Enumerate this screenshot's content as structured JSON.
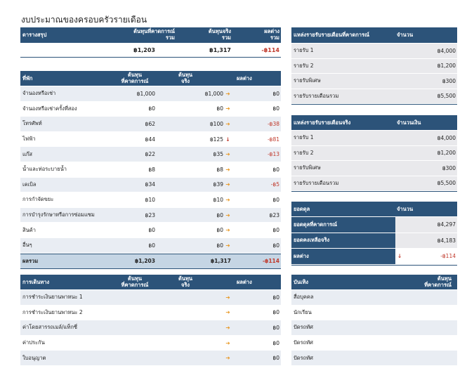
{
  "title": "งบประมาณของครอบครัวรายเดือน",
  "summary": {
    "headers": {
      "label": "ดารางสรุป",
      "planned_1": "ต้นทุนที่คาดการณ์",
      "planned_2": "รวม",
      "actual_1": "ต้นทุนจริง",
      "actual_2": "รวม",
      "diff_1": "ผลต่าง",
      "diff_2": "รวม"
    },
    "planned": "฿1,203",
    "actual": "฿1,317",
    "diff": "-฿114"
  },
  "housing": {
    "headers": {
      "label": "ที่พัก",
      "planned_1": "ต้นทุน",
      "planned_2": "ที่คาดการณ์",
      "actual_1": "ต้นทุน",
      "actual_2": "จริง",
      "diff": "ผลต่าง"
    },
    "rows": [
      {
        "label": "จำนองหรือเช่า",
        "planned": "฿1,000",
        "actual": "฿1,000",
        "arrow": "right",
        "diff": "฿0",
        "neg": false
      },
      {
        "label": "จำนองหรือเช่าครั้งที่สอง",
        "planned": "฿0",
        "actual": "฿0",
        "arrow": "right",
        "diff": "฿0",
        "neg": false
      },
      {
        "label": "โทรศัพท์",
        "planned": "฿62",
        "actual": "฿100",
        "arrow": "right",
        "diff": "-฿38",
        "neg": true
      },
      {
        "label": "ไฟฟ้า",
        "planned": "฿44",
        "actual": "฿125",
        "arrow": "down",
        "diff": "-฿81",
        "neg": true
      },
      {
        "label": "แก๊ส",
        "planned": "฿22",
        "actual": "฿35",
        "arrow": "right",
        "diff": "-฿13",
        "neg": true
      },
      {
        "label": "น้ำและท่อระบายน้ำ",
        "planned": "฿8",
        "actual": "฿8",
        "arrow": "right",
        "diff": "฿0",
        "neg": false
      },
      {
        "label": "เคเบิล",
        "planned": "฿34",
        "actual": "฿39",
        "arrow": "right",
        "diff": "-฿5",
        "neg": true
      },
      {
        "label": "การกำจัดขยะ",
        "planned": "฿10",
        "actual": "฿10",
        "arrow": "right",
        "diff": "฿0",
        "neg": false
      },
      {
        "label": "การบำรุงรักษาหรือการซ่อมแซม",
        "planned": "฿23",
        "actual": "฿0",
        "arrow": "right",
        "diff": "฿23",
        "neg": false
      },
      {
        "label": "สินค้า",
        "planned": "฿0",
        "actual": "฿0",
        "arrow": "right",
        "diff": "฿0",
        "neg": false
      },
      {
        "label": "อื่นๆ",
        "planned": "฿0",
        "actual": "฿0",
        "arrow": "right",
        "diff": "฿0",
        "neg": false
      }
    ],
    "total": {
      "label": "ผลรวม",
      "planned": "฿1,203",
      "actual": "฿1,317",
      "diff": "-฿114"
    }
  },
  "transport": {
    "headers": {
      "label": "การเดินทาง",
      "planned_1": "ต้นทุน",
      "planned_2": "ที่คาดการณ์",
      "actual_1": "ต้นทุน",
      "actual_2": "จริง",
      "diff": "ผลต่าง"
    },
    "rows": [
      {
        "label": "การชำระเงินยานพาหนะ 1",
        "planned": "",
        "actual": "",
        "arrow": "right",
        "diff": "฿0"
      },
      {
        "label": "การชำระเงินยานพาหนะ 2",
        "planned": "",
        "actual": "",
        "arrow": "right",
        "diff": "฿0"
      },
      {
        "label": "ค่าโดยสารรถเมล์/แท็กซี่",
        "planned": "",
        "actual": "",
        "arrow": "right",
        "diff": "฿0"
      },
      {
        "label": "ค่าประกัน",
        "planned": "",
        "actual": "",
        "arrow": "right",
        "diff": "฿0"
      },
      {
        "label": "ใบอนุญาต",
        "planned": "",
        "actual": "",
        "arrow": "right",
        "diff": "฿0"
      }
    ]
  },
  "planned_income": {
    "headers": {
      "label": "แหล่งรายรับรายเดือนที่คาดการณ์",
      "amount": "จำนวน"
    },
    "rows": [
      {
        "label": "รายรับ 1",
        "amount": "฿4,000"
      },
      {
        "label": "รายรับ 2",
        "amount": "฿1,200"
      },
      {
        "label": "รายรับพิเศษ",
        "amount": "฿300"
      },
      {
        "label": "รายรับรายเดือนรวม",
        "amount": "฿5,500"
      }
    ]
  },
  "actual_income": {
    "headers": {
      "label": "แหล่งรายรับรายเดือนจริง",
      "amount": "จำนวนเงิน"
    },
    "rows": [
      {
        "label": "รายรับ 1",
        "amount": "฿4,000"
      },
      {
        "label": "รายรับ 2",
        "amount": "฿1,200"
      },
      {
        "label": "รายรับพิเศษ",
        "amount": "฿300"
      },
      {
        "label": "รายรับรายเดือนรวม",
        "amount": "฿5,500"
      }
    ]
  },
  "balance": {
    "headers": {
      "label": "ยอดดุล",
      "amount": "จำนวน"
    },
    "rows": [
      {
        "label": "ยอดดุลที่คาดการณ์",
        "amount": "฿4,297"
      },
      {
        "label": "ยอดคงเหลือจริง",
        "amount": "฿4,183"
      },
      {
        "label": "ผลต่าง",
        "amount": "-฿114"
      }
    ]
  },
  "entertainment": {
    "headers": {
      "label": "บันเทิง",
      "planned_1": "ต้นทุน",
      "planned_2": "ที่คาดการณ์"
    },
    "rows": [
      {
        "label": "สื่อบุคคล"
      },
      {
        "label": "นักเรียน"
      },
      {
        "label": "ปัดรถทัศ"
      },
      {
        "label": "ปัดรถทัศ"
      },
      {
        "label": "ปัดรถทัศ"
      }
    ]
  },
  "colors": {
    "header": "#2c5379",
    "alt_row": "#e9edf3",
    "negative": "#c0392b",
    "arrow_right": "#e8941a",
    "arrow_down": "#c0392b"
  }
}
